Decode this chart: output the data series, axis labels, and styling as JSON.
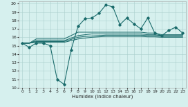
{
  "xlabel": "Humidex (Indice chaleur)",
  "xlim": [
    -0.5,
    23.5
  ],
  "ylim": [
    10,
    20.3
  ],
  "xticks": [
    0,
    1,
    2,
    3,
    4,
    5,
    6,
    7,
    8,
    9,
    10,
    11,
    12,
    13,
    14,
    15,
    16,
    17,
    18,
    19,
    20,
    21,
    22,
    23
  ],
  "yticks": [
    10,
    11,
    12,
    13,
    14,
    15,
    16,
    17,
    18,
    19,
    20
  ],
  "bg_color": "#d6f0ee",
  "grid_color": "#aacfcc",
  "line_color": "#1a6b6b",
  "line1": [
    15.3,
    14.8,
    15.3,
    15.3,
    15.0,
    11.0,
    10.4,
    14.5,
    17.3,
    18.2,
    18.3,
    18.85,
    19.85,
    19.6,
    17.5,
    18.3,
    17.6,
    17.0,
    18.3,
    16.5,
    16.2,
    16.8,
    17.2,
    16.5
  ],
  "line2": [
    15.3,
    15.3,
    15.8,
    15.8,
    15.8,
    15.8,
    15.8,
    16.2,
    16.6,
    16.6,
    16.6,
    16.6,
    16.6,
    16.6,
    16.6,
    16.6,
    16.6,
    16.6,
    16.5,
    16.5,
    16.3,
    16.3,
    16.3,
    16.3
  ],
  "line3": [
    15.3,
    15.3,
    15.6,
    15.6,
    15.6,
    15.6,
    15.6,
    15.9,
    16.2,
    16.3,
    16.4,
    16.4,
    16.4,
    16.4,
    16.4,
    16.4,
    16.4,
    16.4,
    16.3,
    16.3,
    16.2,
    16.2,
    16.2,
    16.2
  ],
  "line4": [
    15.3,
    15.3,
    15.5,
    15.5,
    15.5,
    15.5,
    15.5,
    15.75,
    16.0,
    16.1,
    16.15,
    16.2,
    16.25,
    16.25,
    16.25,
    16.25,
    16.25,
    16.25,
    16.2,
    16.2,
    16.1,
    16.1,
    16.1,
    16.1
  ],
  "line5": [
    15.3,
    15.3,
    15.4,
    15.4,
    15.4,
    15.4,
    15.4,
    15.6,
    15.8,
    15.9,
    16.0,
    16.05,
    16.1,
    16.1,
    16.1,
    16.1,
    16.1,
    16.1,
    16.05,
    16.05,
    16.0,
    16.0,
    16.0,
    16.0
  ]
}
